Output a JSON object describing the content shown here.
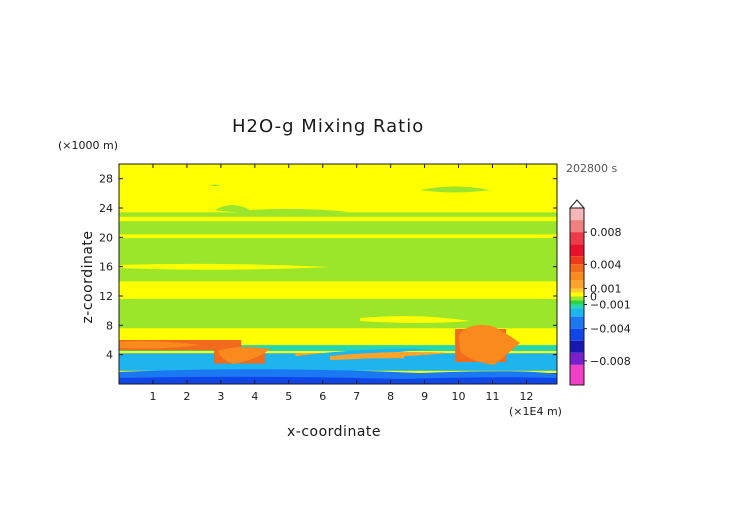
{
  "chart_data": {
    "type": "heatmap",
    "title": "H2O-g Mixing Ratio",
    "time_label": "202800 s",
    "xlabel": "x-coordinate",
    "ylabel": "z-coordinate",
    "x_unit": "(×1E4 m)",
    "y_unit": "(×1000 m)",
    "x_ticks": [
      1,
      2,
      3,
      4,
      5,
      6,
      7,
      8,
      9,
      10,
      11,
      12
    ],
    "y_ticks": [
      4,
      8,
      12,
      16,
      20,
      24,
      28
    ],
    "xlim": [
      0,
      12.9
    ],
    "ylim": [
      0,
      30
    ],
    "colorbar": {
      "labels": [
        {
          "text": "0.008",
          "value": 0.008
        },
        {
          "text": "0.004",
          "value": 0.004
        },
        {
          "text": "0.001",
          "value": 0.001
        },
        {
          "text": "0",
          "value": 0
        },
        {
          "text": "−0.001",
          "value": -0.001
        },
        {
          "text": "−0.004",
          "value": -0.004
        },
        {
          "text": "−0.008",
          "value": -0.008
        }
      ],
      "levels": [
        {
          "low": 0.0095,
          "high": 0.011,
          "color": "#f4b6b6"
        },
        {
          "low": 0.008,
          "high": 0.0095,
          "color": "#f08080"
        },
        {
          "low": 0.0065,
          "high": 0.008,
          "color": "#ec3a4a"
        },
        {
          "low": 0.005,
          "high": 0.0065,
          "color": "#e8102a"
        },
        {
          "low": 0.004,
          "high": 0.005,
          "color": "#ee3a1a"
        },
        {
          "low": 0.003,
          "high": 0.004,
          "color": "#f26a1c"
        },
        {
          "low": 0.002,
          "high": 0.003,
          "color": "#f88a1e"
        },
        {
          "low": 0.001,
          "high": 0.002,
          "color": "#fca42a"
        },
        {
          "low": 0.0005,
          "high": 0.001,
          "color": "#ffcc33"
        },
        {
          "low": 0,
          "high": 0.0005,
          "color": "#ffff00"
        },
        {
          "low": -0.0005,
          "high": 0,
          "color": "#9be62a"
        },
        {
          "low": -0.001,
          "high": -0.0005,
          "color": "#2ed24a"
        },
        {
          "low": -0.0015,
          "high": -0.001,
          "color": "#24d6b2"
        },
        {
          "low": -0.0025,
          "high": -0.0015,
          "color": "#1eb4ee"
        },
        {
          "low": -0.004,
          "high": -0.0025,
          "color": "#1a78f2"
        },
        {
          "low": -0.0055,
          "high": -0.004,
          "color": "#1046e8"
        },
        {
          "low": -0.007,
          "high": -0.0055,
          "color": "#1818b0"
        },
        {
          "low": -0.0085,
          "high": -0.007,
          "color": "#7a1fcf"
        },
        {
          "low": -0.011,
          "high": -0.0085,
          "color": "#f23fc8"
        }
      ]
    },
    "field_regions": [
      {
        "x": [
          0,
          12.9
        ],
        "z": [
          0,
          30
        ],
        "value": 0.0002
      },
      {
        "x": [
          0,
          12.9
        ],
        "z": [
          22.8,
          23.4
        ],
        "value": -0.0002
      },
      {
        "x": [
          0,
          12.9
        ],
        "z": [
          20.4,
          22.2
        ],
        "value": -0.0002
      },
      {
        "x": [
          0,
          12.9
        ],
        "z": [
          14.0,
          19.9
        ],
        "value": -0.0002
      },
      {
        "x": [
          0,
          12.9
        ],
        "z": [
          7.6,
          11.6
        ],
        "value": -0.0002
      },
      {
        "x": [
          0,
          12.9
        ],
        "z": [
          4.5,
          5.3
        ],
        "value": -0.0012
      },
      {
        "x": [
          0,
          12.9
        ],
        "z": [
          1.8,
          4.2
        ],
        "value": -0.0022
      },
      {
        "x": [
          0,
          12.9
        ],
        "z": [
          0.5,
          1.5
        ],
        "value": -0.005
      },
      {
        "x": [
          0,
          3.6
        ],
        "z": [
          4.6,
          6.0
        ],
        "value": 0.003
      },
      {
        "x": [
          2.8,
          4.3
        ],
        "z": [
          2.8,
          4.8
        ],
        "value": 0.0035
      },
      {
        "x": [
          9.9,
          11.4
        ],
        "z": [
          3.0,
          7.5
        ],
        "value": 0.0038
      },
      {
        "x": [
          5.2,
          8.4
        ],
        "z": [
          3.5,
          4.2
        ],
        "value": 0.0015
      }
    ]
  }
}
